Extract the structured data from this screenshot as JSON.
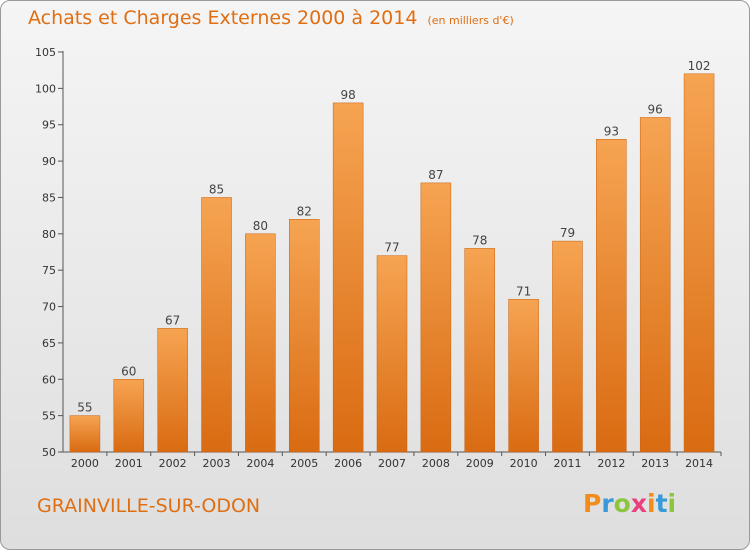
{
  "chart_data": {
    "type": "bar",
    "title": "Achats et Charges Externes 2000 à 2014",
    "subtitle": "(en milliers d'€)",
    "categories": [
      "2000",
      "2001",
      "2002",
      "2003",
      "2004",
      "2005",
      "2006",
      "2007",
      "2008",
      "2009",
      "2010",
      "2011",
      "2012",
      "2013",
      "2014"
    ],
    "values": [
      55,
      60,
      67,
      85,
      80,
      82,
      98,
      77,
      87,
      78,
      71,
      79,
      93,
      96,
      102
    ],
    "ylim": [
      50,
      105
    ],
    "yticks": [
      50,
      55,
      60,
      65,
      70,
      75,
      80,
      85,
      90,
      95,
      100,
      105
    ],
    "xlabel": "",
    "ylabel": "",
    "grid": false,
    "data_labels": true,
    "bar_color": "#f0892a"
  },
  "footer": {
    "commune": "GRAINVILLE-SUR-ODON",
    "logo_text": "Proxiti",
    "logo_colors": [
      "#f28c1b",
      "#3a9ad9",
      "#8cc63f",
      "#e8417d",
      "#f28c1b",
      "#3a9ad9",
      "#8cc63f"
    ]
  }
}
